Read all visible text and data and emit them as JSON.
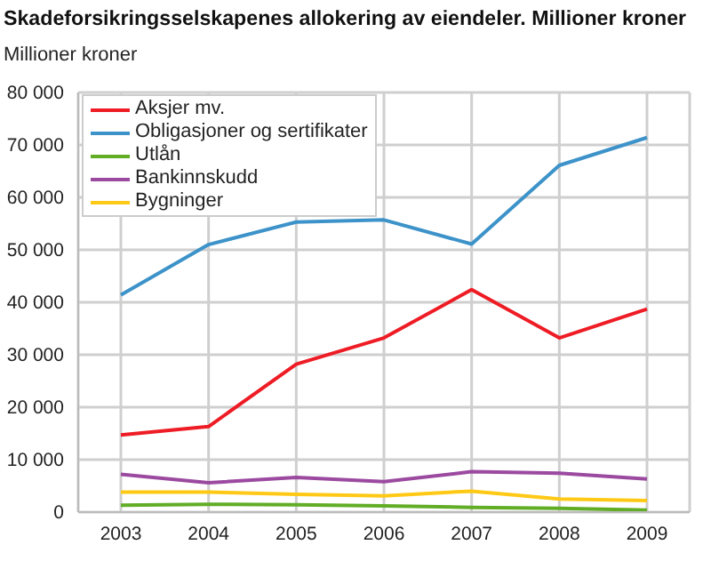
{
  "chart_data": {
    "type": "line",
    "title": "Skadeforsikringsselskapenes allokering av eiendeler. Millioner kroner",
    "annotations": [
      "Millioner kroner"
    ],
    "categories": [
      "2003",
      "2004",
      "2005",
      "2006",
      "2007",
      "2008",
      "2009"
    ],
    "series": [
      {
        "name": "Aksjer mv.",
        "color": "#ee1c25",
        "values": [
          14700,
          16300,
          28200,
          33200,
          42400,
          33200,
          38700
        ]
      },
      {
        "name": "Obligasjoner og sertifikater",
        "color": "#3d93c9",
        "values": [
          41400,
          51000,
          55300,
          55700,
          51100,
          66100,
          71400
        ]
      },
      {
        "name": "Utlån",
        "color": "#61ad26",
        "values": [
          1300,
          1500,
          1400,
          1200,
          900,
          700,
          400
        ]
      },
      {
        "name": "Bankinnskudd",
        "color": "#9b4aa0",
        "values": [
          7200,
          5600,
          6600,
          5800,
          7700,
          7400,
          6300
        ]
      },
      {
        "name": "Bygninger",
        "color": "#ffc915",
        "values": [
          3800,
          3800,
          3400,
          3100,
          4000,
          2500,
          2200
        ]
      }
    ],
    "ylim": [
      0,
      80000
    ],
    "yticks": [
      {
        "value": 0,
        "label": "0"
      },
      {
        "value": 10000,
        "label": "10 000"
      },
      {
        "value": 20000,
        "label": "20 000"
      },
      {
        "value": 30000,
        "label": "30 000"
      },
      {
        "value": 40000,
        "label": "40 000"
      },
      {
        "value": 50000,
        "label": "50 000"
      },
      {
        "value": 60000,
        "label": "60 000"
      },
      {
        "value": 70000,
        "label": "70 000"
      },
      {
        "value": 80000,
        "label": "80 000"
      }
    ],
    "grid": true,
    "legend": "top left",
    "marker": "none",
    "line_style": "solid"
  }
}
